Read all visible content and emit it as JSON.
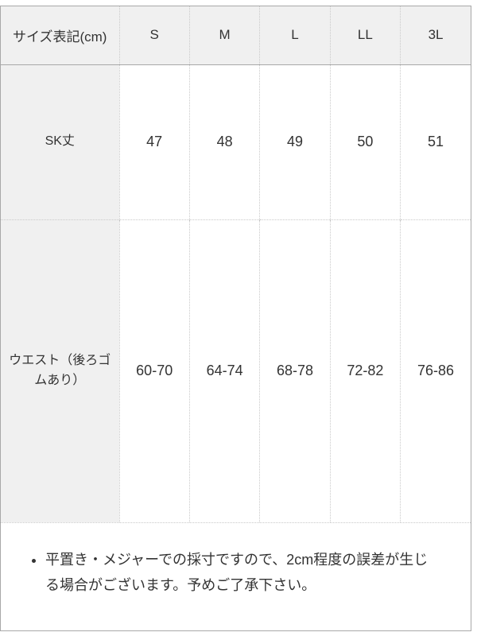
{
  "table": {
    "header": {
      "label": "サイズ表記(cm)",
      "sizes": [
        "S",
        "M",
        "L",
        "LL",
        "3L"
      ]
    },
    "rows": [
      {
        "label": "SK丈",
        "values": [
          "47",
          "48",
          "49",
          "50",
          "51"
        ]
      },
      {
        "label": "ウエスト（後ろゴムあり）",
        "values": [
          "60-70",
          "64-74",
          "68-78",
          "72-82",
          "76-86"
        ]
      }
    ]
  },
  "notes": {
    "items": [
      "平置き・メジャーでの採寸ですので、2cm程度の誤差が生じる場合がございます。予めご了承下さい。"
    ]
  },
  "colors": {
    "header_background": "#f0f0f0",
    "solid_border": "#a8a8a8",
    "dotted_border": "#c9c9c9",
    "text": "#333333",
    "cell_background": "#ffffff"
  }
}
